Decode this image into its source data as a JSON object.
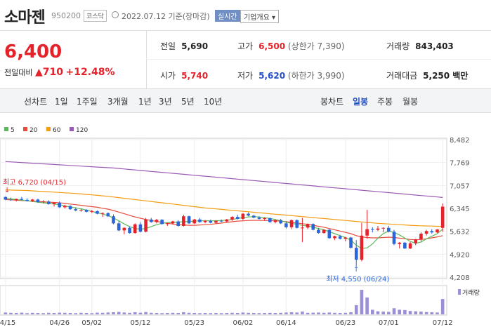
{
  "header": {
    "name": "소마젠",
    "code": "950200",
    "market": "코스닥",
    "date": "2022.07.12",
    "date_note": "기준(장마감)",
    "realtime": "실시간",
    "company": "기업개요 ▾"
  },
  "summary": {
    "price": "6,400",
    "change_label": "전일대비",
    "change": "▲710",
    "change_pct": "+12.48%",
    "prev_label": "전일",
    "prev": "5,690",
    "high_label": "고가",
    "high": "6,500",
    "upper_limit": "(상한가 7,390)",
    "volume_label": "거래량",
    "volume": "843,403",
    "open_label": "시가",
    "open": "5,740",
    "low_label": "저가",
    "low": "5,620",
    "lower_limit": "(하한가 3,990)",
    "amount_label": "거래대금",
    "amount": "5,250 백만"
  },
  "toolbar": {
    "line_chart": "선차트",
    "periods": [
      "1일",
      "1주일",
      "3개월",
      "1년",
      "3년",
      "5년",
      "10년"
    ],
    "candle_chart": "봉차트",
    "candle_periods": [
      "일봉",
      "주봉",
      "월봉"
    ]
  },
  "chart_data": {
    "type": "candlestick",
    "legend": [
      {
        "name": "5",
        "color": "#5cb85c"
      },
      {
        "name": "20",
        "color": "#e74c3c"
      },
      {
        "name": "60",
        "color": "#f39c12"
      },
      {
        "name": "120",
        "color": "#9b59b6"
      }
    ],
    "y_ticks": [
      "8,482",
      "7,769",
      "7,057",
      "6,345",
      "5,632",
      "4,920",
      "4,208"
    ],
    "ylim": [
      4208,
      8482
    ],
    "x_ticks": [
      "04/15",
      "04/26",
      "05/02",
      "05/12",
      "05/23",
      "06/02",
      "06/14",
      "06/23",
      "07/01",
      "07/12"
    ],
    "high_annotation": "최고 6,720 (04/15)",
    "low_annotation": "최저 4,550 (06/24)",
    "volume_label": "거래량",
    "candles": [
      [
        6700,
        6720,
        6600,
        6620
      ],
      [
        6620,
        6680,
        6580,
        6600
      ],
      [
        6600,
        6650,
        6560,
        6640
      ],
      [
        6640,
        6700,
        6600,
        6610
      ],
      [
        6610,
        6660,
        6560,
        6580
      ],
      [
        6580,
        6640,
        6540,
        6620
      ],
      [
        6620,
        6650,
        6520,
        6540
      ],
      [
        6540,
        6600,
        6500,
        6560
      ],
      [
        6560,
        6600,
        6460,
        6480
      ],
      [
        6480,
        6540,
        6400,
        6520
      ],
      [
        6520,
        6560,
        6360,
        6380
      ],
      [
        6380,
        6460,
        6340,
        6420
      ],
      [
        6420,
        6440,
        6300,
        6320
      ],
      [
        6320,
        6380,
        6260,
        6280
      ],
      [
        6280,
        6340,
        6240,
        6300
      ],
      [
        6300,
        6320,
        6220,
        6240
      ],
      [
        6240,
        6300,
        6200,
        6260
      ],
      [
        6260,
        6280,
        6160,
        6180
      ],
      [
        6180,
        6220,
        6080,
        6200
      ],
      [
        6200,
        6220,
        6080,
        6100
      ],
      [
        6100,
        6160,
        5850,
        5880
      ],
      [
        5880,
        5950,
        5640,
        5660
      ],
      [
        5660,
        5760,
        5540,
        5740
      ],
      [
        5740,
        5780,
        5560,
        5580
      ],
      [
        5580,
        5880,
        5560,
        5850
      ],
      [
        5850,
        5920,
        5600,
        5620
      ],
      [
        5620,
        6050,
        5600,
        6000
      ],
      [
        6000,
        6050,
        5900,
        5920
      ],
      [
        5920,
        6020,
        5880,
        5990
      ],
      [
        5990,
        6010,
        5840,
        5860
      ],
      [
        5860,
        5900,
        5800,
        5880
      ],
      [
        5880,
        5960,
        5840,
        5940
      ],
      [
        5940,
        5980,
        5780,
        5800
      ],
      [
        5800,
        6150,
        5780,
        6100
      ],
      [
        6100,
        6120,
        5860,
        5880
      ],
      [
        5880,
        6020,
        5860,
        6000
      ],
      [
        6000,
        6050,
        5900,
        5920
      ],
      [
        5920,
        5980,
        5880,
        5960
      ],
      [
        5960,
        6000,
        5880,
        5900
      ],
      [
        5900,
        5980,
        5880,
        5960
      ],
      [
        5960,
        6000,
        5920,
        5940
      ],
      [
        5940,
        6020,
        5900,
        6000
      ],
      [
        6000,
        6100,
        5960,
        6080
      ],
      [
        6080,
        6150,
        6000,
        6020
      ],
      [
        6020,
        6200,
        5980,
        6180
      ],
      [
        6180,
        6220,
        6100,
        6120
      ],
      [
        6120,
        6140,
        6040,
        6060
      ],
      [
        6060,
        6100,
        6000,
        6020
      ],
      [
        6020,
        6060,
        5960,
        6040
      ],
      [
        6040,
        6060,
        5900,
        5920
      ],
      [
        5920,
        6000,
        5880,
        5980
      ],
      [
        5980,
        6020,
        5860,
        5880
      ],
      [
        5880,
        5950,
        5720,
        5760
      ],
      [
        5760,
        6000,
        5700,
        5980
      ],
      [
        5980,
        6000,
        5720,
        5740
      ],
      [
        5740,
        6050,
        5300,
        5750
      ],
      [
        5750,
        5880,
        5700,
        5860
      ],
      [
        5860,
        5880,
        5660,
        5680
      ],
      [
        5680,
        5740,
        5560,
        5580
      ],
      [
        5580,
        5700,
        5560,
        5680
      ],
      [
        5680,
        5700,
        5400,
        5420
      ],
      [
        5420,
        5500,
        5360,
        5480
      ],
      [
        5480,
        5520,
        5380,
        5400
      ],
      [
        5400,
        5460,
        5320,
        5440
      ],
      [
        5440,
        5460,
        5100,
        5120
      ],
      [
        5120,
        5360,
        4550,
        4750
      ],
      [
        4750,
        5900,
        4700,
        5500
      ],
      [
        5500,
        6300,
        5400,
        5700
      ],
      [
        5700,
        5760,
        5600,
        5680
      ],
      [
        5680,
        5800,
        5640,
        5720
      ],
      [
        5720,
        5760,
        5600,
        5740
      ],
      [
        5740,
        5800,
        5600,
        5620
      ],
      [
        5620,
        5680,
        5200,
        5240
      ],
      [
        5240,
        5300,
        5100,
        5280
      ],
      [
        5280,
        5300,
        5080,
        5100
      ],
      [
        5100,
        5300,
        5080,
        5260
      ],
      [
        5260,
        5400,
        5200,
        5380
      ],
      [
        5380,
        5600,
        5320,
        5560
      ],
      [
        5560,
        5680,
        5500,
        5640
      ],
      [
        5640,
        5700,
        5560,
        5600
      ],
      [
        5600,
        5700,
        5580,
        5690
      ],
      [
        5740,
        6500,
        5620,
        6400
      ]
    ],
    "ma5": [
      6660,
      6640,
      6620,
      6600,
      6580,
      6560,
      6540,
      6520,
      6500,
      6480,
      6460,
      6420,
      6390,
      6360,
      6330,
      6290,
      6250,
      6210,
      6170,
      6120,
      6050,
      5960,
      5860,
      5780,
      5720,
      5700,
      5720,
      5780,
      5840,
      5880,
      5900,
      5910,
      5920,
      5930,
      5940,
      5950,
      5960,
      5960,
      5960,
      5960,
      5970,
      5980,
      6000,
      6030,
      6060,
      6080,
      6090,
      6080,
      6060,
      6030,
      6000,
      5960,
      5920,
      5880,
      5850,
      5820,
      5800,
      5760,
      5720,
      5680,
      5620,
      5560,
      5500,
      5440,
      5360,
      5200,
      5100,
      5120,
      5240,
      5420,
      5560,
      5640,
      5600,
      5520,
      5420,
      5320,
      5260,
      5300,
      5400,
      5480,
      5560,
      5700
    ],
    "ma20": [
      6620,
      6610,
      6600,
      6590,
      6580,
      6570,
      6560,
      6550,
      6540,
      6530,
      6520,
      6500,
      6480,
      6460,
      6440,
      6420,
      6400,
      6380,
      6350,
      6320,
      6280,
      6230,
      6180,
      6130,
      6080,
      6040,
      6000,
      5970,
      5940,
      5910,
      5880,
      5860,
      5840,
      5830,
      5820,
      5820,
      5830,
      5840,
      5850,
      5870,
      5890,
      5910,
      5930,
      5950,
      5960,
      5970,
      5975,
      5975,
      5970,
      5965,
      5960,
      5950,
      5930,
      5910,
      5890,
      5870,
      5850,
      5820,
      5790,
      5760,
      5720,
      5680,
      5640,
      5600,
      5560,
      5500,
      5460,
      5440,
      5430,
      5430,
      5440,
      5450,
      5440,
      5420,
      5400,
      5380,
      5370,
      5380,
      5400,
      5430,
      5460,
      5500
    ],
    "ma60": [
      6920,
      6915,
      6910,
      6905,
      6900,
      6890,
      6880,
      6870,
      6860,
      6850,
      6840,
      6830,
      6820,
      6810,
      6795,
      6780,
      6765,
      6750,
      6735,
      6720,
      6700,
      6680,
      6660,
      6640,
      6620,
      6600,
      6580,
      6560,
      6540,
      6520,
      6500,
      6480,
      6460,
      6440,
      6420,
      6400,
      6380,
      6360,
      6345,
      6330,
      6315,
      6300,
      6285,
      6270,
      6255,
      6240,
      6225,
      6210,
      6195,
      6180,
      6165,
      6150,
      6135,
      6120,
      6105,
      6090,
      6075,
      6060,
      6045,
      6030,
      6015,
      6000,
      5985,
      5970,
      5955,
      5940,
      5925,
      5910,
      5895,
      5880,
      5870,
      5860,
      5850,
      5840,
      5830,
      5820,
      5810,
      5805,
      5800,
      5795,
      5790,
      5785
    ],
    "ma120": [
      7800,
      7790,
      7780,
      7770,
      7760,
      7750,
      7740,
      7730,
      7720,
      7710,
      7700,
      7690,
      7680,
      7670,
      7660,
      7650,
      7640,
      7630,
      7620,
      7610,
      7600,
      7585,
      7570,
      7555,
      7540,
      7525,
      7510,
      7495,
      7480,
      7465,
      7450,
      7435,
      7420,
      7405,
      7390,
      7375,
      7360,
      7345,
      7330,
      7315,
      7300,
      7285,
      7270,
      7255,
      7240,
      7225,
      7210,
      7195,
      7180,
      7165,
      7150,
      7135,
      7120,
      7105,
      7090,
      7075,
      7060,
      7045,
      7030,
      7015,
      7000,
      6985,
      6970,
      6955,
      6940,
      6925,
      6910,
      6895,
      6880,
      6865,
      6850,
      6835,
      6820,
      6805,
      6790,
      6775,
      6760,
      6745,
      6730,
      6715,
      6700,
      6685
    ],
    "volume": [
      12,
      10,
      9,
      11,
      8,
      10,
      9,
      8,
      10,
      9,
      11,
      10,
      9,
      8,
      10,
      9,
      8,
      11,
      10,
      12,
      14,
      16,
      12,
      10,
      14,
      11,
      15,
      10,
      9,
      8,
      9,
      10,
      9,
      14,
      10,
      9,
      8,
      9,
      8,
      9,
      8,
      9,
      10,
      9,
      12,
      10,
      9,
      8,
      9,
      10,
      9,
      10,
      12,
      14,
      12,
      18,
      10,
      11,
      12,
      10,
      12,
      10,
      9,
      10,
      14,
      60,
      160,
      110,
      30,
      20,
      18,
      16,
      40,
      30,
      28,
      22,
      20,
      18,
      15,
      14,
      12,
      100
    ]
  }
}
